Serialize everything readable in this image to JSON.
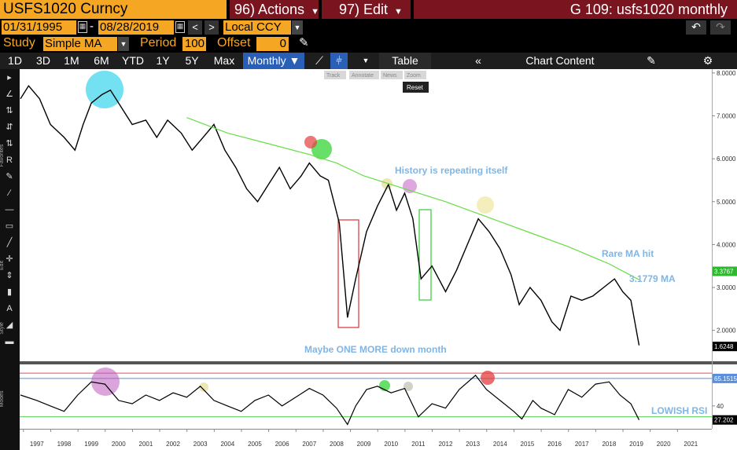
{
  "header": {
    "ticker": "USFS1020 Curncy",
    "actions": "96) Actions",
    "edit": "97) Edit",
    "window": "G 109: usfs1020 monthly"
  },
  "controls": {
    "start": "01/31/1995",
    "end": "08/28/2019",
    "currency": "Local CCY",
    "study_label": "Study",
    "study": "Simple MA",
    "period_label": "Period",
    "period": "100",
    "offset_label": "Offset",
    "offset": "0"
  },
  "ranges": [
    "1D",
    "3D",
    "1M",
    "6M",
    "YTD",
    "1Y",
    "5Y",
    "Max"
  ],
  "frequency": "Monthly",
  "table": "Table",
  "chart_content": "Chart Content",
  "chart_tools": [
    "Track",
    "Annotate",
    "News",
    "Zoom",
    "Reset"
  ],
  "side_labels": [
    "Favorites",
    "Edit",
    "Style",
    "Modes"
  ],
  "chart_data": [
    {
      "type": "line",
      "xlim": [
        1996.87,
        2022.27
      ],
      "ylim": [
        1.28,
        8.09
      ],
      "yticks": [
        {
          "value": 2,
          "label": "2.0000"
        },
        {
          "value": 3,
          "label": "3.0000"
        },
        {
          "value": 4,
          "label": "4.0000"
        },
        {
          "value": 5,
          "label": "5.0000"
        },
        {
          "value": 6,
          "label": "6.0000"
        },
        {
          "value": 7,
          "label": "7.0000"
        },
        {
          "value": 8,
          "label": "8.0000"
        }
      ],
      "series": [
        {
          "color": "#000000",
          "x": [
            1996.9,
            1997.2,
            1997.6,
            1998.0,
            1998.5,
            1998.9,
            1999.2,
            1999.5,
            1999.9,
            2000.2,
            2000.6,
            2001.0,
            2001.5,
            2001.9,
            2002.3,
            2002.8,
            2003.2,
            2003.6,
            2004.0,
            2004.4,
            2004.8,
            2005.2,
            2005.6,
            2006.0,
            2006.4,
            2006.8,
            2007.2,
            2007.5,
            2007.9,
            2008.2,
            2008.6,
            2008.9,
            2009.2,
            2009.6,
            2010.0,
            2010.4,
            2010.7,
            2011.0,
            2011.3,
            2011.6,
            2012.0,
            2012.5,
            2012.9,
            2013.3,
            2013.7,
            2014.1,
            2014.5,
            2014.9,
            2015.2,
            2015.6,
            2016.0,
            2016.4,
            2016.7,
            2017.1,
            2017.5,
            2017.9,
            2018.3,
            2018.7,
            2019.0,
            2019.3,
            2019.6
          ],
          "values": [
            7.4,
            7.7,
            7.4,
            6.8,
            6.5,
            6.2,
            6.8,
            7.3,
            7.5,
            7.6,
            7.2,
            6.8,
            6.9,
            6.5,
            6.9,
            6.6,
            6.2,
            6.5,
            6.8,
            6.2,
            5.8,
            5.3,
            5.0,
            5.4,
            5.8,
            5.3,
            5.6,
            5.9,
            5.6,
            5.5,
            4.5,
            2.3,
            3.2,
            4.3,
            4.9,
            5.4,
            4.8,
            5.2,
            4.6,
            3.2,
            3.5,
            2.9,
            3.4,
            4.0,
            4.6,
            4.3,
            3.9,
            3.3,
            2.6,
            3.0,
            2.7,
            2.2,
            2.0,
            2.8,
            2.7,
            2.8,
            3.0,
            3.2,
            2.9,
            2.7,
            1.65
          ]
        },
        {
          "color": "#66dd44",
          "x": [
            2003.0,
            2004.5,
            2006.0,
            2007.5,
            2008.5,
            2009.5,
            2011.0,
            2012.5,
            2014.0,
            2015.5,
            2017.0,
            2018.5,
            2019.6
          ],
          "values": [
            6.96,
            6.6,
            6.35,
            6.1,
            5.9,
            5.6,
            5.3,
            5.0,
            4.65,
            4.3,
            3.95,
            3.55,
            3.18
          ]
        }
      ],
      "price_tags": [
        {
          "value": 3.3767,
          "color": "#2db82d"
        },
        {
          "value": 1.6248,
          "color": "#000000"
        }
      ],
      "annotations": [
        "History is repeating itself",
        "Rare MA hit",
        "3.1779 MA",
        "Maybe ONE MORE down month"
      ]
    },
    {
      "type": "line",
      "xlim": [
        1996.87,
        2022.27
      ],
      "ylim": [
        19.8,
        78
      ],
      "yticks": [
        40
      ],
      "xticks": [
        {
          "value": 1997.5,
          "label": "1997"
        },
        {
          "value": 1998.5,
          "label": "1998"
        },
        {
          "value": 1999.5,
          "label": "1999"
        },
        {
          "value": 2000.5,
          "label": "2000"
        },
        {
          "value": 2001.5,
          "label": "2001"
        },
        {
          "value": 2002.5,
          "label": "2002"
        },
        {
          "value": 2003.5,
          "label": "2003"
        },
        {
          "value": 2004.5,
          "label": "2004"
        },
        {
          "value": 2005.5,
          "label": "2005"
        },
        {
          "value": 2006.5,
          "label": "2006"
        },
        {
          "value": 2007.5,
          "label": "2007"
        },
        {
          "value": 2008.5,
          "label": "2008"
        },
        {
          "value": 2009.5,
          "label": "2009"
        },
        {
          "value": 2010.5,
          "label": "2010"
        },
        {
          "value": 2011.5,
          "label": "2011"
        },
        {
          "value": 2012.5,
          "label": "2012"
        },
        {
          "value": 2013.5,
          "label": "2013"
        },
        {
          "value": 2014.5,
          "label": "2014"
        },
        {
          "value": 2015.5,
          "label": "2015"
        },
        {
          "value": 2016.5,
          "label": "2016"
        },
        {
          "value": 2017.5,
          "label": "2017"
        },
        {
          "value": 2018.5,
          "label": "2018"
        },
        {
          "value": 2019.5,
          "label": "2019"
        },
        {
          "value": 2020.5,
          "label": "2020"
        },
        {
          "value": 2021.5,
          "label": "2021"
        }
      ],
      "levels": [
        {
          "value": 70,
          "color": "#e05050"
        },
        {
          "value": 30,
          "color": "#44cc44"
        }
      ],
      "series": [
        {
          "color": "#000000",
          "x": [
            1996.9,
            1997.5,
            1998.0,
            1998.5,
            1999.0,
            1999.5,
            2000.0,
            2000.5,
            2001.0,
            2001.5,
            2002.0,
            2002.5,
            2003.0,
            2003.5,
            2004.0,
            2004.5,
            2005.0,
            2005.5,
            2006.0,
            2006.5,
            2007.0,
            2007.5,
            2008.0,
            2008.5,
            2008.9,
            2009.2,
            2009.6,
            2010.0,
            2010.5,
            2011.0,
            2011.5,
            2012.0,
            2012.5,
            2013.0,
            2013.6,
            2014.0,
            2014.5,
            2015.0,
            2015.3,
            2015.7,
            2016.0,
            2016.5,
            2017.0,
            2017.5,
            2018.0,
            2018.5,
            2018.9,
            2019.3,
            2019.6
          ],
          "values": [
            50,
            45,
            40,
            35,
            50,
            62,
            60,
            45,
            42,
            50,
            45,
            52,
            48,
            58,
            45,
            40,
            35,
            45,
            50,
            40,
            48,
            56,
            50,
            38,
            23,
            40,
            55,
            58,
            52,
            56,
            30,
            42,
            38,
            55,
            68,
            55,
            45,
            35,
            28,
            45,
            38,
            32,
            55,
            48,
            60,
            62,
            50,
            42,
            27.2
          ]
        }
      ],
      "value_tags": [
        {
          "value": 65.1515,
          "color": "#5b8fd9"
        },
        {
          "value": 27.202,
          "color": "#000000"
        }
      ],
      "annotations": [
        "LOWISH RSI"
      ]
    }
  ]
}
